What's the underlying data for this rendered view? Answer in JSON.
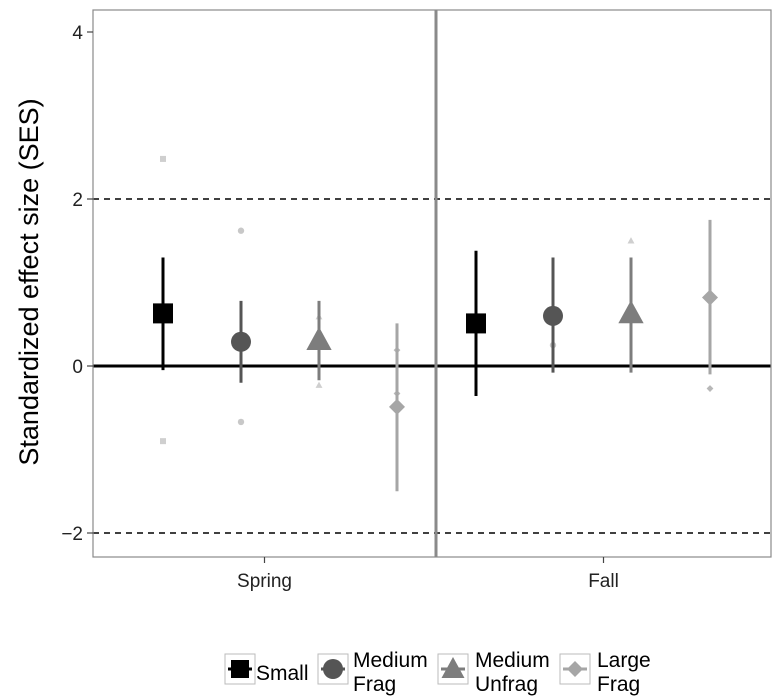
{
  "chart_data": {
    "type": "scatter",
    "subtype": "point-range (point estimate with interval) by panel",
    "title": "",
    "xlabel": "",
    "ylabel": "Standardized effect size (SES)",
    "ylim": [
      -2.3,
      4.3
    ],
    "yticks": [
      -2,
      0,
      2,
      4
    ],
    "yticklabels": [
      "−2",
      "0",
      "2",
      "4"
    ],
    "reference_lines": [
      {
        "y": 0,
        "style": "solid"
      },
      {
        "y": 2,
        "style": "dashed"
      },
      {
        "y": -2,
        "style": "dashed"
      }
    ],
    "panels": [
      "Spring",
      "Fall"
    ],
    "grid": false,
    "legend_position": "bottom",
    "series": [
      {
        "name": "Small",
        "legend_lines": [
          "Small"
        ],
        "marker": "square",
        "color": "#000000",
        "faint_color": "#cfcfcf",
        "values": [
          {
            "panel": "Spring",
            "point": 0.63,
            "low": -0.05,
            "high": 1.3,
            "faint": [
              2.48,
              -0.9
            ]
          },
          {
            "panel": "Fall",
            "point": 0.51,
            "low": -0.36,
            "high": 1.38,
            "faint": []
          }
        ]
      },
      {
        "name": "Medium Frag",
        "legend_lines": [
          "Medium",
          "Frag"
        ],
        "marker": "circle",
        "color": "#555555",
        "faint_color": "#c8c8c8",
        "values": [
          {
            "panel": "Spring",
            "point": 0.29,
            "low": -0.2,
            "high": 0.78,
            "faint": [
              1.62,
              -0.67
            ]
          },
          {
            "panel": "Fall",
            "point": 0.6,
            "low": -0.08,
            "high": 1.3,
            "faint": [
              0.25
            ]
          }
        ]
      },
      {
        "name": "Medium Unfrag",
        "legend_lines": [
          "Medium",
          "Unfrag"
        ],
        "marker": "triangle",
        "color": "#7d7d7d",
        "faint_color": "#cfcfcf",
        "values": [
          {
            "panel": "Spring",
            "point": 0.31,
            "low": -0.17,
            "high": 0.78,
            "faint": [
              0.59,
              -0.23
            ]
          },
          {
            "panel": "Fall",
            "point": 0.63,
            "low": -0.08,
            "high": 1.3,
            "faint": [
              1.5
            ]
          }
        ]
      },
      {
        "name": "Large Frag",
        "legend_lines": [
          "Large",
          "Frag"
        ],
        "marker": "diamond",
        "color": "#a6a6a6",
        "faint_color": "#b8b8b8",
        "values": [
          {
            "panel": "Spring",
            "point": -0.49,
            "low": -1.5,
            "high": 0.51,
            "faint": [
              0.19,
              -0.33
            ]
          },
          {
            "panel": "Fall",
            "point": 0.82,
            "low": -0.1,
            "high": 1.75,
            "faint": [
              -0.27
            ]
          }
        ]
      }
    ]
  },
  "colors": {
    "panel_border": "#8a8a8a",
    "panel_divider": "#8a8a8a",
    "zero_line": "#000000",
    "dashed_lines": "#000000"
  }
}
